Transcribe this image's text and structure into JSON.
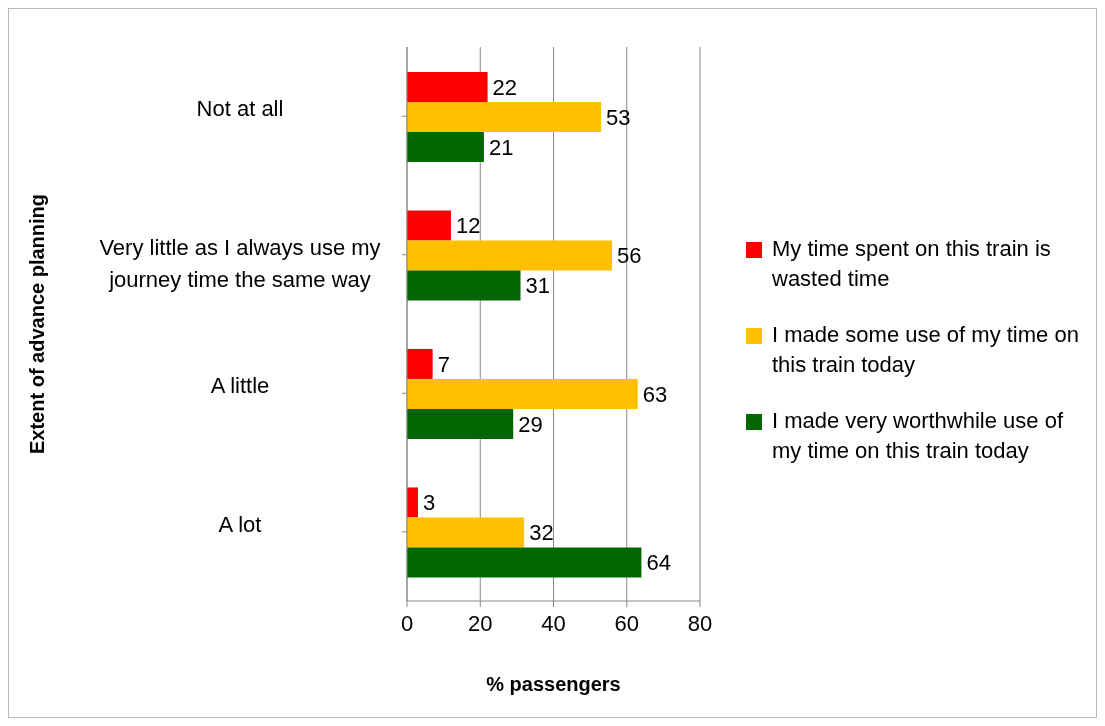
{
  "chart_data": {
    "type": "bar",
    "orientation": "horizontal",
    "xlabel": "% passengers",
    "ylabel": "Extent of advance planning",
    "categories": [
      "Not at all",
      "Very little as I always use my journey time the same way",
      "A little",
      "A lot"
    ],
    "series": [
      {
        "name": "My time spent on this train is wasted time",
        "color": "#ff0000",
        "values": [
          22,
          12,
          7,
          3
        ]
      },
      {
        "name": "I made some use of my time on this train today",
        "color": "#ffc000",
        "values": [
          53,
          56,
          63,
          32
        ]
      },
      {
        "name": "I made very worthwhile use of my time on this train today",
        "color": "#006600",
        "values": [
          21,
          31,
          29,
          64
        ]
      }
    ],
    "xlim": [
      0,
      80
    ],
    "xticks": [
      0,
      20,
      40,
      60,
      80
    ],
    "grid": "x",
    "legend": "right",
    "data_labels": true
  }
}
